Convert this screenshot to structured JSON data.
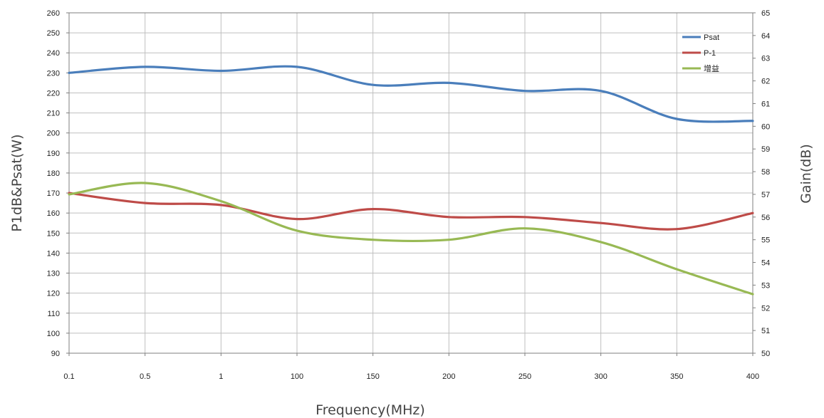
{
  "chart_data": {
    "type": "line",
    "categories": [
      "0.1",
      "0.5",
      "1",
      "100",
      "150",
      "200",
      "250",
      "300",
      "350",
      "400"
    ],
    "xlabel": "Frequency(MHz)",
    "ylabel": "P1dB&Psat(W)",
    "y2label": "Gain(dB)",
    "ylim": [
      90,
      260
    ],
    "y2lim": [
      50,
      65
    ],
    "yticks": [
      "90",
      "100",
      "110",
      "120",
      "130",
      "140",
      "150",
      "160",
      "170",
      "180",
      "190",
      "200",
      "210",
      "220",
      "230",
      "240",
      "250",
      "260"
    ],
    "y2ticks": [
      "50",
      "51",
      "52",
      "53",
      "54",
      "55",
      "56",
      "57",
      "58",
      "59",
      "60",
      "61",
      "62",
      "63",
      "64",
      "65"
    ],
    "grid": true,
    "legend_position": "top-right",
    "series": [
      {
        "name": "Psat",
        "axis": "left",
        "color": "#4a7ebb",
        "values": [
          230,
          233,
          231,
          233,
          224,
          225,
          221,
          221,
          207,
          206
        ]
      },
      {
        "name": "P-1",
        "axis": "left",
        "color": "#be4b48",
        "values": [
          170,
          165,
          164,
          157,
          162,
          158,
          158,
          155,
          152,
          160
        ]
      },
      {
        "name": "增益",
        "axis": "right",
        "color": "#98b954",
        "values": [
          57.0,
          57.5,
          56.7,
          55.4,
          55.0,
          55.0,
          55.5,
          54.9,
          53.7,
          52.6
        ]
      }
    ]
  }
}
